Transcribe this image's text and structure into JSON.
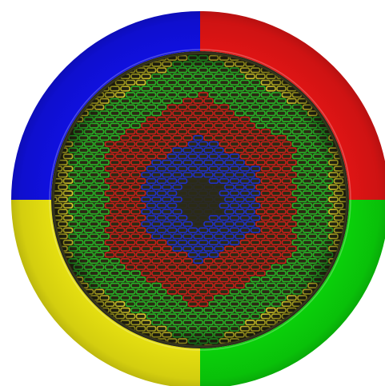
{
  "board": {
    "ring": {
      "quadrants": [
        {
          "id": "top-left",
          "color_name": "blue",
          "color": "#1010e0"
        },
        {
          "id": "top-right",
          "color_name": "red",
          "color": "#e01414"
        },
        {
          "id": "bottom-right",
          "color_name": "green",
          "color": "#0ad10a"
        },
        {
          "id": "bottom-left",
          "color_name": "yellow",
          "color": "#e6e010"
        }
      ]
    },
    "mesh": {
      "zones": [
        {
          "id": "outer",
          "color_name": "yellow",
          "color": "#d8cf2a"
        },
        {
          "id": "band-2",
          "color_name": "green",
          "color": "#27b327"
        },
        {
          "id": "band-3",
          "color_name": "red",
          "color": "#c81f1a"
        },
        {
          "id": "band-4",
          "color_name": "blue",
          "color": "#2030c8"
        },
        {
          "id": "center",
          "color_name": "black",
          "color": "#2a2a2a"
        }
      ],
      "pattern": "hexagonal-perforated-grid"
    }
  }
}
